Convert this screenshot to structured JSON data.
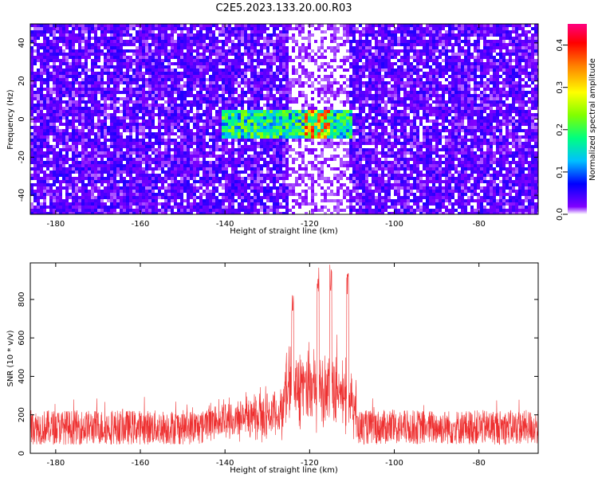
{
  "title": "C2E5.2023.133.20.00.R03",
  "chart_data": [
    {
      "type": "heatmap",
      "xlabel": "Height of straight line (km)",
      "ylabel": "Frequency (Hz)",
      "xlim": [
        -186,
        -66
      ],
      "ylim": [
        -50,
        50
      ],
      "xticks": [
        -180,
        -160,
        -140,
        -120,
        -100,
        -80
      ],
      "yticks": [
        -40,
        -20,
        0,
        20,
        40
      ],
      "colorbar": {
        "label": "Normalized spectral amplitude",
        "range": [
          0.0,
          0.45
        ],
        "ticks": [
          0.0,
          0.1,
          0.2,
          0.3,
          0.4
        ],
        "palette": [
          "#ffffff",
          "#8000ff",
          "#0000ff",
          "#00c0ff",
          "#00ff80",
          "#80ff00",
          "#ffff00",
          "#ff8000",
          "#ff0000",
          "#ff0080"
        ]
      },
      "features": {
        "background_level": 0.03,
        "quiet_band": {
          "x": [
            -125,
            -111
          ],
          "level": 0.01
        },
        "signal_band": {
          "x": [
            -141,
            -110
          ],
          "freq": [
            -10,
            5
          ],
          "level": 0.25,
          "peak_x": -118,
          "peak_level": 0.4
        }
      }
    },
    {
      "type": "line",
      "xlabel": "Height of straight line (km)",
      "ylabel": "SNR (10 * v/v)",
      "xlim": [
        -186,
        -66
      ],
      "ylim": [
        0,
        990
      ],
      "xticks": [
        -180,
        -160,
        -140,
        -120,
        -100,
        -80
      ],
      "yticks": [
        0,
        200,
        400,
        600,
        800
      ],
      "series": [
        {
          "color": "#ee3030",
          "baseline": 135,
          "noise_amplitude": 90,
          "peaks": [
            {
              "x": -124,
              "y": 830
            },
            {
              "x": -118,
              "y": 990
            },
            {
              "x": -115,
              "y": 990
            },
            {
              "x": -111,
              "y": 960
            }
          ]
        }
      ]
    }
  ]
}
